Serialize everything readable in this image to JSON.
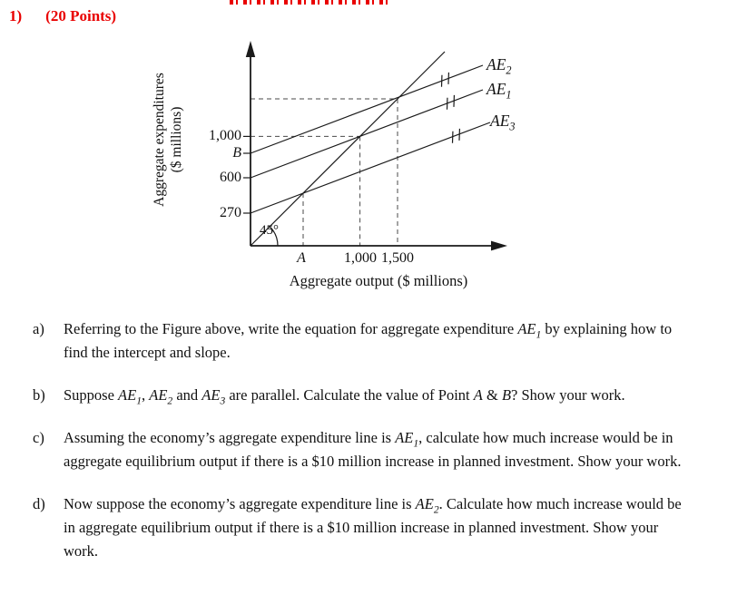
{
  "colors": {
    "accent_red": "#e90000",
    "ink": "#111111"
  },
  "header": {
    "number": "1)",
    "points_label": "(20 Points)"
  },
  "figure": {
    "y_axis_title_line1": "Aggregate expenditures",
    "y_axis_title_line2": "($ millions)",
    "x_axis_title": "Aggregate output ($ millions)",
    "angle_label": "45°",
    "y_tick_1000": "1,000",
    "y_tick_B": "B",
    "y_tick_600": "600",
    "y_tick_270": "270",
    "x_tick_A": "A",
    "x_tick_1000": "1,000",
    "x_tick_1500": "1,500",
    "lines": [
      {
        "label_main": "AE",
        "label_sub": "2"
      },
      {
        "label_main": "AE",
        "label_sub": "1"
      },
      {
        "label_main": "AE",
        "label_sub": "3"
      }
    ]
  },
  "chart_data": {
    "type": "line",
    "title": "",
    "xlabel": "Aggregate output ($ millions)",
    "ylabel": "Aggregate expenditures ($ millions)",
    "x_tick_labels": [
      "A",
      "1,000",
      "1,500"
    ],
    "y_tick_labels": [
      "270",
      "600",
      "B",
      "1,000"
    ],
    "grid": false,
    "series": [
      {
        "name": "45° line",
        "description": "45-degree reference line from the origin",
        "annotation": "45°"
      },
      {
        "name": "AE2",
        "y_intercept_label": "B",
        "equilibrium_output": 1500,
        "marked_parallel": true
      },
      {
        "name": "AE1",
        "y_intercept": 600,
        "equilibrium_output": 1000,
        "marked_parallel": true
      },
      {
        "name": "AE3",
        "y_intercept": 270,
        "equilibrium_output_label": "A",
        "marked_parallel": true
      }
    ],
    "dashed_guides": [
      "horizontal at 1,000 to AE1–45° intersection, vertical down to output 1,000",
      "horizontal at AE2–45° intersection level, vertical down to output 1,500",
      "vertical from AE3–45° intersection down to output A"
    ]
  },
  "questions": [
    {
      "label": "a)",
      "parts": [
        {
          "t": "Referring to the Figure above, write the equation for aggregate expenditure "
        },
        {
          "t": "AE",
          "i": true
        },
        {
          "t": "1",
          "i": true,
          "sub": true
        },
        {
          "t": " by explaining how to find the intercept and slope."
        }
      ]
    },
    {
      "label": "b)",
      "parts": [
        {
          "t": "Suppose "
        },
        {
          "t": "AE",
          "i": true
        },
        {
          "t": "1",
          "i": true,
          "sub": true
        },
        {
          "t": ", "
        },
        {
          "t": "AE",
          "i": true
        },
        {
          "t": "2",
          "i": true,
          "sub": true
        },
        {
          "t": " and "
        },
        {
          "t": "AE",
          "i": true
        },
        {
          "t": "3",
          "i": true,
          "sub": true
        },
        {
          "t": " are parallel. Calculate the value of Point "
        },
        {
          "t": "A",
          "i": true
        },
        {
          "t": " & "
        },
        {
          "t": "B",
          "i": true
        },
        {
          "t": "? Show your work."
        }
      ]
    },
    {
      "label": "c)",
      "parts": [
        {
          "t": "Assuming the economy’s aggregate expenditure line is "
        },
        {
          "t": "AE",
          "i": true
        },
        {
          "t": "1",
          "i": true,
          "sub": true
        },
        {
          "t": ", calculate how much increase would be in aggregate equilibrium output if there is a $10 million increase in planned investment. Show your work."
        }
      ]
    },
    {
      "label": "d)",
      "parts": [
        {
          "t": "Now suppose the economy’s aggregate expenditure line is "
        },
        {
          "t": "AE",
          "i": true
        },
        {
          "t": "2",
          "i": true,
          "sub": true
        },
        {
          "t": ". Calculate how much increase would be in aggregate equilibrium output if there is a $10 million increase in planned investment. Show your work."
        }
      ]
    }
  ]
}
